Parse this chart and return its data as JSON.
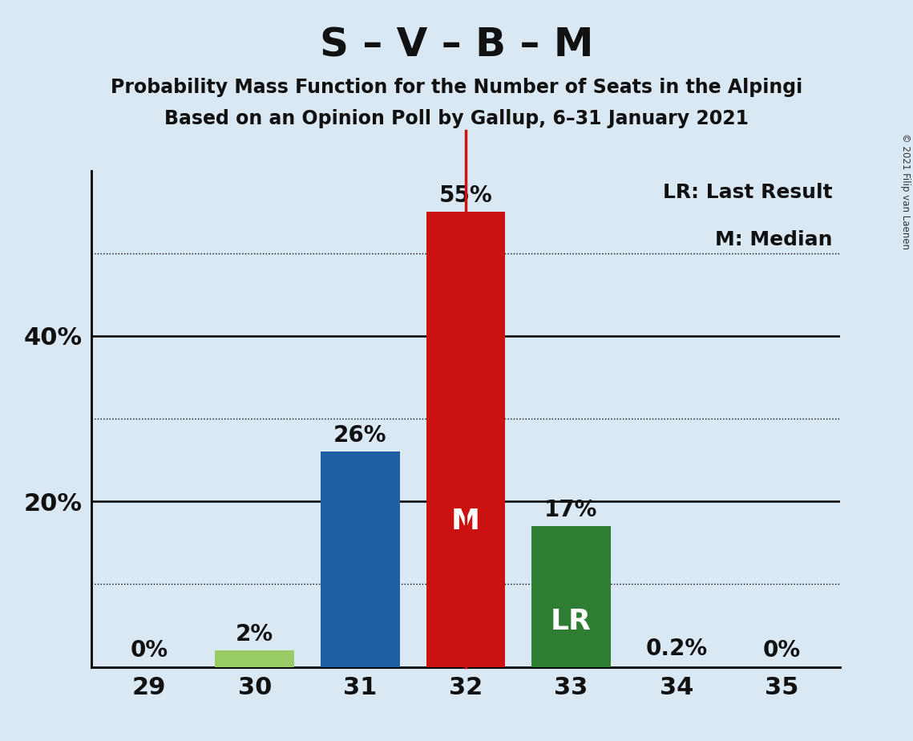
{
  "title": "S – V – B – M",
  "subtitle1": "Probability Mass Function for the Number of Seats in the Alpingi",
  "subtitle2": "Based on an Opinion Poll by Gallup, 6–31 January 2021",
  "copyright": "© 2021 Filip van Laenen",
  "categories": [
    29,
    30,
    31,
    32,
    33,
    34,
    35
  ],
  "values": [
    0.0,
    2.0,
    26.0,
    55.0,
    17.0,
    0.2,
    0.0
  ],
  "bar_colors": [
    "none",
    "#99cc66",
    "#1f5fa6",
    "#cc1111",
    "#2e7d32",
    "none",
    "none"
  ],
  "label_texts": [
    "0%",
    "2%",
    "26%",
    "55%",
    "17%",
    "0.2%",
    "0%"
  ],
  "inside_labels": {
    "32": "M",
    "33": "LR"
  },
  "inside_label_color": "#ffffff",
  "median_line_x": 32,
  "median_line_color": "#cc1111",
  "background_color": "#dae8f4",
  "ylim": [
    0,
    60
  ],
  "yticks_solid": [
    0,
    20,
    40
  ],
  "yticks_dotted": [
    10,
    30,
    50
  ],
  "legend_text1": "LR: Last Result",
  "legend_text2": "M: Median",
  "title_fontsize": 36,
  "subtitle_fontsize": 17,
  "axis_label_fontsize": 22,
  "bar_label_fontsize": 20,
  "inside_label_fontsize": 26,
  "legend_fontsize": 18,
  "text_color": "#111111"
}
